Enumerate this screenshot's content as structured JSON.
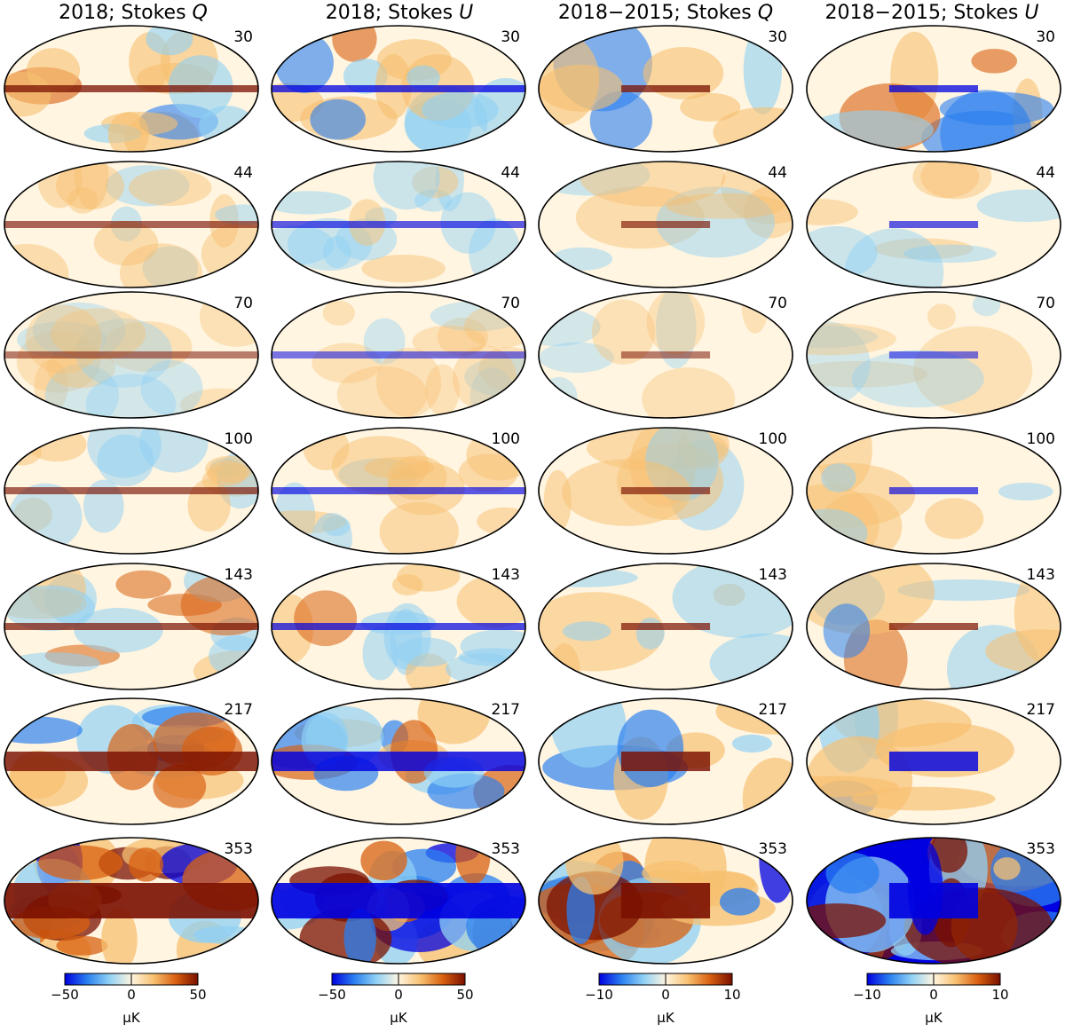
{
  "figure": {
    "columns": [
      {
        "title_prefix": "2018; Stokes ",
        "title_var": "Q",
        "scale": "narrow",
        "tick_labels": [
          "−50",
          "0",
          "50"
        ],
        "unit": "μK"
      },
      {
        "title_prefix": "2018; Stokes ",
        "title_var": "U",
        "scale": "narrow",
        "tick_labels": [
          "−50",
          "0",
          "50"
        ],
        "unit": "μK"
      },
      {
        "title_prefix": "2018−2015; Stokes ",
        "title_var": "Q",
        "scale": "narrow",
        "tick_labels": [
          "−10",
          "0",
          "10"
        ],
        "unit": "μK"
      },
      {
        "title_prefix": "2018−2015; Stokes ",
        "title_var": "U",
        "scale": "narrow",
        "tick_labels": [
          "−10",
          "0",
          "10"
        ],
        "unit": "μK"
      }
    ],
    "rows": [
      "30",
      "44",
      "70",
      "100",
      "143",
      "217",
      "353"
    ],
    "colormap": [
      "#0000e0",
      "#2a7ff0",
      "#8fd0f4",
      "#fff5e1",
      "#f7c070",
      "#d86010",
      "#7a1000"
    ]
  }
}
